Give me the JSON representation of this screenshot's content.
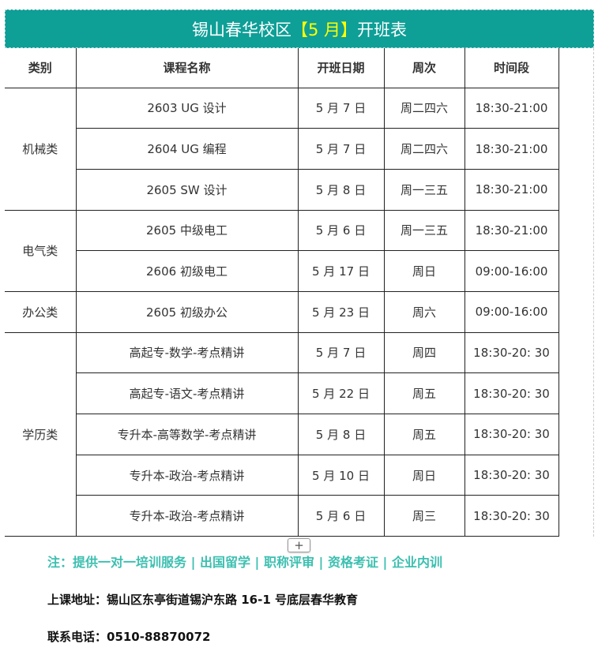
{
  "title": {
    "prefix": "锡山春华校区",
    "highlight": "【5 月】",
    "suffix": "开班表"
  },
  "headers": [
    "类别",
    "课程名称",
    "开班日期",
    "周次",
    "时间段"
  ],
  "groups": [
    {
      "category": "机械类",
      "rows": [
        [
          "2603 UG 设计",
          "5 月 7 日",
          "周二四六",
          "18:30-21:00"
        ],
        [
          "2604 UG 编程",
          "5 月 7 日",
          "周二四六",
          "18:30-21:00"
        ],
        [
          "2605 SW 设计",
          "5 月 8 日",
          "周一三五",
          "18:30-21:00"
        ]
      ]
    },
    {
      "category": "电气类",
      "rows": [
        [
          "2605  中级电工",
          "5 月 6 日",
          "周一三五",
          "18:30-21:00"
        ],
        [
          "2606  初级电工",
          "5 月 17 日",
          "周日",
          "09:00-16:00"
        ]
      ]
    },
    {
      "category": "办公类",
      "rows": [
        [
          "2605  初级办公",
          "5 月 23 日",
          "周六",
          "09:00-16:00"
        ]
      ]
    },
    {
      "category": "学历类",
      "rows": [
        [
          "高起专-数学-考点精讲",
          "5 月 7 日",
          "周四",
          "18:30-20: 30"
        ],
        [
          "高起专-语文-考点精讲",
          "5 月 22 日",
          "周五",
          "18:30-20: 30"
        ],
        [
          "专升本-高等数学-考点精讲",
          "5 月 8 日",
          "周五",
          "18:30-20: 30"
        ],
        [
          "专升本-政治-考点精讲",
          "5 月 10 日",
          "周日",
          "18:30-20: 30"
        ],
        [
          "专升本-政治-考点精讲",
          "5 月 6 日",
          "周三",
          "18:30-20: 30"
        ]
      ]
    }
  ],
  "note": "注：提供一对一培训服务 | 出国留学 | 职称评审 | 资格考证 | 企业内训",
  "address": "上课地址：锡山区东亭街道锡沪东路 16-1 号底层春华教育",
  "phone": "联系电话：0510-88870072",
  "add_button": "+",
  "colors": {
    "title_bg": "#0e9f97",
    "highlight": "#ffff00",
    "note": "#3cbfb0"
  }
}
